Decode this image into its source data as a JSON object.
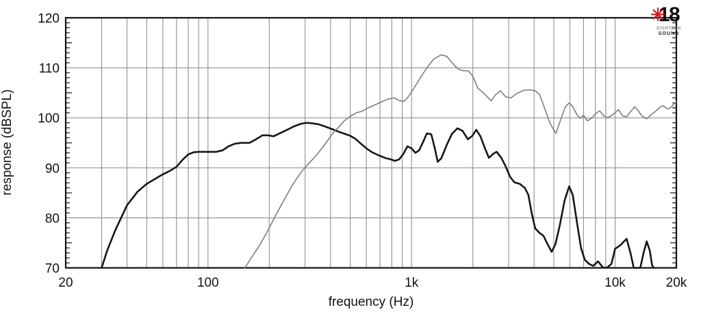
{
  "logo": {
    "number": "18",
    "line1": "EIGHTEEN",
    "line2": "SOUND",
    "star_color": "#d01f26"
  },
  "chart_data": {
    "type": "line",
    "title": "",
    "xlabel": "frequency (Hz)",
    "ylabel": "response (dBSPL)",
    "x_scale": "log",
    "xlim": [
      20,
      20000
    ],
    "ylim": [
      70,
      120
    ],
    "grid": "full log-decade vertical grid, horizontal gridlines every 10 dB, minor ticks every 1 dB",
    "legend": "none",
    "colors": {
      "background": "#ffffff",
      "grid": "#8f8f8f",
      "axis": "#111111"
    },
    "x_ticks": [
      {
        "value": 20,
        "label": "20"
      },
      {
        "value": 100,
        "label": "100"
      },
      {
        "value": 1000,
        "label": "1k"
      },
      {
        "value": 10000,
        "label": "10k"
      },
      {
        "value": 20000,
        "label": "20k"
      }
    ],
    "y_ticks": [
      {
        "value": 70,
        "label": "70"
      },
      {
        "value": 80,
        "label": "80"
      },
      {
        "value": 90,
        "label": "90"
      },
      {
        "value": 100,
        "label": "100"
      },
      {
        "value": 110,
        "label": "110"
      },
      {
        "value": 120,
        "label": "120"
      }
    ],
    "series": [
      {
        "name": "black-curve",
        "color": "#161616",
        "width": 2.6,
        "points": [
          [
            30,
            70
          ],
          [
            32,
            73.5
          ],
          [
            35,
            77.5
          ],
          [
            40,
            82.5
          ],
          [
            45,
            85.2
          ],
          [
            50,
            86.8
          ],
          [
            55,
            87.8
          ],
          [
            60,
            88.7
          ],
          [
            65,
            89.4
          ],
          [
            70,
            90.2
          ],
          [
            75,
            91.6
          ],
          [
            80,
            92.7
          ],
          [
            85,
            93.1
          ],
          [
            90,
            93.2
          ],
          [
            100,
            93.2
          ],
          [
            110,
            93.2
          ],
          [
            118,
            93.5
          ],
          [
            126,
            94.3
          ],
          [
            135,
            94.8
          ],
          [
            145,
            95.0
          ],
          [
            160,
            95.0
          ],
          [
            172,
            95.7
          ],
          [
            185,
            96.5
          ],
          [
            198,
            96.5
          ],
          [
            210,
            96.3
          ],
          [
            225,
            96.9
          ],
          [
            245,
            97.6
          ],
          [
            265,
            98.3
          ],
          [
            285,
            98.8
          ],
          [
            305,
            99.0
          ],
          [
            325,
            98.9
          ],
          [
            350,
            98.7
          ],
          [
            380,
            98.2
          ],
          [
            410,
            97.7
          ],
          [
            440,
            97.2
          ],
          [
            470,
            96.8
          ],
          [
            500,
            96.4
          ],
          [
            530,
            95.8
          ],
          [
            565,
            94.8
          ],
          [
            600,
            93.9
          ],
          [
            640,
            93.1
          ],
          [
            690,
            92.5
          ],
          [
            740,
            92.0
          ],
          [
            790,
            91.7
          ],
          [
            830,
            91.4
          ],
          [
            870,
            91.7
          ],
          [
            915,
            92.9
          ],
          [
            955,
            94.3
          ],
          [
            1000,
            93.9
          ],
          [
            1045,
            93.0
          ],
          [
            1090,
            93.5
          ],
          [
            1140,
            95.2
          ],
          [
            1190,
            96.9
          ],
          [
            1250,
            96.7
          ],
          [
            1300,
            94.0
          ],
          [
            1345,
            91.2
          ],
          [
            1400,
            91.9
          ],
          [
            1490,
            94.6
          ],
          [
            1580,
            96.8
          ],
          [
            1680,
            97.9
          ],
          [
            1780,
            97.4
          ],
          [
            1890,
            95.7
          ],
          [
            1990,
            96.4
          ],
          [
            2080,
            97.6
          ],
          [
            2180,
            96.3
          ],
          [
            2300,
            93.8
          ],
          [
            2400,
            92.0
          ],
          [
            2520,
            92.8
          ],
          [
            2620,
            93.2
          ],
          [
            2760,
            92.0
          ],
          [
            2900,
            90.3
          ],
          [
            3050,
            88.2
          ],
          [
            3200,
            87.1
          ],
          [
            3400,
            86.8
          ],
          [
            3600,
            86.0
          ],
          [
            3750,
            84.6
          ],
          [
            3900,
            80.8
          ],
          [
            4050,
            77.9
          ],
          [
            4250,
            77.0
          ],
          [
            4450,
            76.4
          ],
          [
            4650,
            74.8
          ],
          [
            4880,
            73.2
          ],
          [
            5100,
            74.8
          ],
          [
            5350,
            78.5
          ],
          [
            5650,
            83.5
          ],
          [
            5950,
            86.3
          ],
          [
            6200,
            84.5
          ],
          [
            6500,
            79.0
          ],
          [
            6800,
            74.0
          ],
          [
            7100,
            71.6
          ],
          [
            7450,
            70.8
          ],
          [
            7800,
            70.4
          ],
          [
            8250,
            71.3
          ],
          [
            8700,
            70.1
          ],
          [
            9100,
            69.6
          ],
          [
            9600,
            70.8
          ],
          [
            10000,
            73.8
          ],
          [
            10600,
            74.5
          ],
          [
            11000,
            75.2
          ],
          [
            11400,
            75.8
          ],
          [
            11900,
            73.0
          ],
          [
            12350,
            70.0
          ],
          [
            12800,
            69.3
          ],
          [
            13300,
            69.8
          ],
          [
            13800,
            73.0
          ],
          [
            14300,
            75.3
          ],
          [
            14800,
            73.5
          ],
          [
            15200,
            70.5
          ],
          [
            15500,
            69.0
          ]
        ]
      },
      {
        "name": "gray-curve",
        "color": "#7d7d7d",
        "width": 1.6,
        "points": [
          [
            152,
            70
          ],
          [
            162,
            71.8
          ],
          [
            178,
            74.3
          ],
          [
            196,
            77.3
          ],
          [
            215,
            80.5
          ],
          [
            238,
            83.8
          ],
          [
            262,
            86.8
          ],
          [
            285,
            89.0
          ],
          [
            308,
            90.6
          ],
          [
            332,
            92.0
          ],
          [
            358,
            93.6
          ],
          [
            385,
            95.3
          ],
          [
            412,
            97.0
          ],
          [
            435,
            98.0
          ],
          [
            465,
            99.3
          ],
          [
            500,
            100.3
          ],
          [
            535,
            101.0
          ],
          [
            570,
            101.3
          ],
          [
            605,
            101.9
          ],
          [
            655,
            102.5
          ],
          [
            705,
            103.1
          ],
          [
            760,
            103.7
          ],
          [
            820,
            104.0
          ],
          [
            875,
            103.4
          ],
          [
            920,
            103.3
          ],
          [
            960,
            104.1
          ],
          [
            1000,
            105.2
          ],
          [
            1060,
            106.8
          ],
          [
            1120,
            108.4
          ],
          [
            1200,
            110.2
          ],
          [
            1290,
            111.8
          ],
          [
            1400,
            112.6
          ],
          [
            1490,
            112.3
          ],
          [
            1580,
            111.0
          ],
          [
            1690,
            109.8
          ],
          [
            1800,
            109.4
          ],
          [
            1900,
            109.4
          ],
          [
            2000,
            108.3
          ],
          [
            2120,
            105.9
          ],
          [
            2270,
            104.9
          ],
          [
            2460,
            103.4
          ],
          [
            2600,
            104.7
          ],
          [
            2740,
            105.4
          ],
          [
            2900,
            104.2
          ],
          [
            3080,
            104.0
          ],
          [
            3300,
            104.9
          ],
          [
            3550,
            105.5
          ],
          [
            3800,
            105.6
          ],
          [
            4050,
            105.4
          ],
          [
            4250,
            104.7
          ],
          [
            4500,
            102.0
          ],
          [
            4800,
            98.8
          ],
          [
            5120,
            96.9
          ],
          [
            5400,
            99.6
          ],
          [
            5700,
            102.2
          ],
          [
            5950,
            103.0
          ],
          [
            6200,
            102.2
          ],
          [
            6500,
            100.6
          ],
          [
            6760,
            99.9
          ],
          [
            7000,
            100.5
          ],
          [
            7320,
            99.4
          ],
          [
            7650,
            99.9
          ],
          [
            8000,
            100.8
          ],
          [
            8400,
            101.4
          ],
          [
            8800,
            100.4
          ],
          [
            9200,
            100.0
          ],
          [
            9700,
            100.6
          ],
          [
            10400,
            101.6
          ],
          [
            10900,
            100.4
          ],
          [
            11400,
            100.2
          ],
          [
            11900,
            101.2
          ],
          [
            12500,
            102.2
          ],
          [
            13000,
            101.4
          ],
          [
            13600,
            100.3
          ],
          [
            14300,
            99.8
          ],
          [
            15000,
            100.6
          ],
          [
            15800,
            101.3
          ],
          [
            16700,
            102.2
          ],
          [
            17300,
            102.4
          ],
          [
            18000,
            101.8
          ],
          [
            18700,
            102.0
          ],
          [
            19300,
            102.6
          ],
          [
            20000,
            103.2
          ]
        ]
      }
    ]
  }
}
